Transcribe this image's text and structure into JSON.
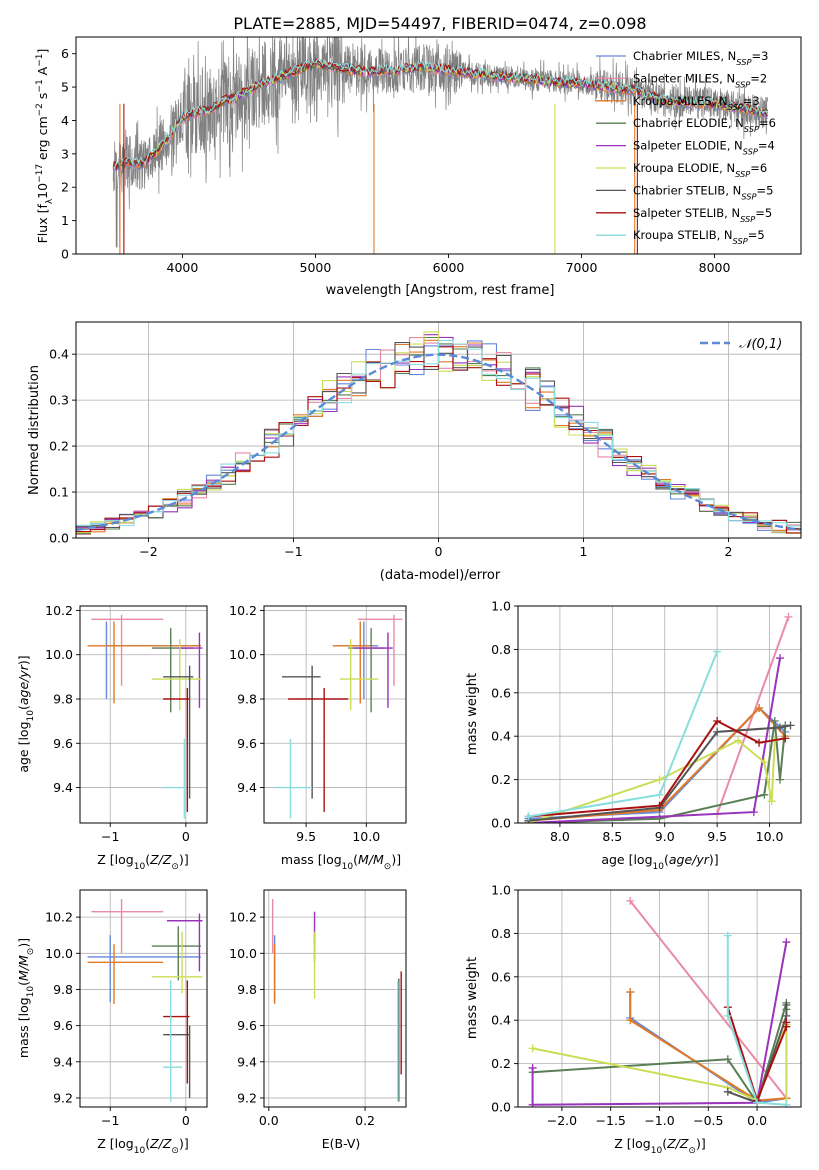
{
  "figure_title": "PLATE=2885, MJD=54497, FIBERID=0474, z=0.098",
  "colors": {
    "c0": "#6688dd",
    "c1": "#e88aa8",
    "c2": "#e07a28",
    "c3": "#5a7e55",
    "c4": "#9933bb",
    "c5": "#ccdd55",
    "c6": "#555555",
    "c7": "#aa1111",
    "c8": "#88dddd",
    "data": "#808080",
    "gauss": "#5b8bd6"
  },
  "chart_data": [
    {
      "id": "spectrum",
      "type": "line",
      "xlabel": "wavelength [Angstrom, rest frame]",
      "ylabel": "Flux [f_λ10^-17 erg cm^-2 s^-1 A^-1]",
      "xlim": [
        3200,
        8650
      ],
      "ylim": [
        0,
        6.5
      ],
      "xticks": [
        4000,
        5000,
        6000,
        7000,
        8000
      ],
      "yticks": [
        0,
        1,
        2,
        3,
        4,
        5,
        6
      ],
      "legend_position": "upper right",
      "legend": [
        "Chabrier MILES, N_SSP=3",
        "Salpeter MILES, N_SSP=2",
        "Kroupa MILES, N_SSP=3",
        "Chabrier ELODIE, N_SSP=6",
        "Salpeter ELODIE, N_SSP=4",
        "Kroupa ELODIE, N_SSP=6",
        "Chabrier STELIB, N_SSP=5",
        "Salpeter STELIB, N_SSP=5",
        "Kroupa STELIB, N_SSP=5"
      ],
      "model_continuum": {
        "wavelength": [
          3480,
          3600,
          3700,
          3800,
          3900,
          4000,
          4100,
          4200,
          4300,
          4400,
          4500,
          4600,
          4700,
          4800,
          4900,
          5000,
          5200,
          5400,
          5600,
          5800,
          6000,
          6200,
          6400,
          6600,
          6800,
          7000,
          7200,
          7400,
          7600,
          7800,
          8000,
          8200,
          8400
        ],
        "flux": [
          2.6,
          2.75,
          2.7,
          3.05,
          3.5,
          4.1,
          4.25,
          4.3,
          4.55,
          4.7,
          4.9,
          5.1,
          5.25,
          5.4,
          5.55,
          5.7,
          5.55,
          5.45,
          5.5,
          5.6,
          5.5,
          5.4,
          5.3,
          5.25,
          5.15,
          5.1,
          5.0,
          4.9,
          4.6,
          4.55,
          4.5,
          4.35,
          4.2
        ]
      }
    },
    {
      "id": "residuals",
      "type": "step",
      "xlabel": "(data-model)/error",
      "ylabel": "Normed distribution",
      "xlim": [
        -2.5,
        2.5
      ],
      "ylim": [
        0,
        0.47
      ],
      "xticks": [
        -2,
        -1,
        0,
        1,
        2
      ],
      "yticks": [
        0.0,
        0.1,
        0.2,
        0.3,
        0.4
      ],
      "legend_position": "upper right",
      "gauss_label": "𝒩(0,1)"
    },
    {
      "id": "age_vs_Z",
      "type": "errorbar",
      "xlabel": "Z [log10(Z/Z☉)]",
      "ylabel": "age [log10(age/yr)]",
      "xlim": [
        -1.4,
        0.28
      ],
      "ylim": [
        9.24,
        10.22
      ],
      "xticks": [
        -1,
        0
      ],
      "yticks": [
        9.4,
        9.6,
        9.8,
        10.0,
        10.2
      ],
      "points": [
        {
          "c": "c0",
          "x": -1.05,
          "xe": [
            -1.05,
            0.2
          ],
          "y": 10.04,
          "ye": [
            9.8,
            10.15
          ]
        },
        {
          "c": "c1",
          "x": -0.85,
          "xe": [
            -1.25,
            -0.3
          ],
          "y": 10.16,
          "ye": [
            9.86,
            10.18
          ]
        },
        {
          "c": "c2",
          "x": -0.95,
          "xe": [
            -1.3,
            0.2
          ],
          "y": 10.04,
          "ye": [
            9.78,
            10.15
          ]
        },
        {
          "c": "c3",
          "x": -0.2,
          "xe": [
            -0.45,
            0.1
          ],
          "y": 10.03,
          "ye": [
            9.74,
            10.12
          ]
        },
        {
          "c": "c4",
          "x": 0.18,
          "xe": [
            -0.1,
            0.22
          ],
          "y": 10.03,
          "ye": [
            9.76,
            10.1
          ]
        },
        {
          "c": "c5",
          "x": -0.08,
          "xe": [
            -0.45,
            0.2
          ],
          "y": 9.89,
          "ye": [
            9.75,
            10.07
          ]
        },
        {
          "c": "c6",
          "x": 0.05,
          "xe": [
            -0.3,
            0.1
          ],
          "y": 9.9,
          "ye": [
            9.35,
            9.95
          ]
        },
        {
          "c": "c7",
          "x": 0.02,
          "xe": [
            -0.3,
            0.05
          ],
          "y": 9.8,
          "ye": [
            9.29,
            9.85
          ]
        },
        {
          "c": "c8",
          "x": -0.02,
          "xe": [
            -0.3,
            0.0
          ],
          "y": 9.4,
          "ye": [
            9.26,
            9.62
          ]
        }
      ]
    },
    {
      "id": "age_vs_mass",
      "type": "errorbar",
      "xlabel": "mass [log10(M/M☉)]",
      "ylabel": "",
      "xlim": [
        9.15,
        10.33
      ],
      "ylim": [
        9.24,
        10.22
      ],
      "xticks": [
        9.5,
        10.0
      ],
      "yticks": [
        9.4,
        9.6,
        9.8,
        10.0,
        10.2
      ],
      "points": [
        {
          "c": "c0",
          "x": 9.98,
          "xe": [
            9.75,
            10.1
          ],
          "y": 10.04,
          "ye": [
            9.8,
            10.15
          ]
        },
        {
          "c": "c1",
          "x": 10.23,
          "xe": [
            9.93,
            10.3
          ],
          "y": 10.16,
          "ye": [
            9.86,
            10.18
          ]
        },
        {
          "c": "c2",
          "x": 9.95,
          "xe": [
            9.72,
            10.05
          ],
          "y": 10.04,
          "ye": [
            9.78,
            10.15
          ]
        },
        {
          "c": "c3",
          "x": 10.04,
          "xe": [
            9.85,
            10.15
          ],
          "y": 10.03,
          "ye": [
            9.74,
            10.12
          ]
        },
        {
          "c": "c4",
          "x": 10.18,
          "xe": [
            9.9,
            10.22
          ],
          "y": 10.03,
          "ye": [
            9.76,
            10.1
          ]
        },
        {
          "c": "c5",
          "x": 9.87,
          "xe": [
            9.78,
            10.1
          ],
          "y": 9.89,
          "ye": [
            9.75,
            10.07
          ]
        },
        {
          "c": "c6",
          "x": 9.55,
          "xe": [
            9.3,
            9.62
          ],
          "y": 9.9,
          "ye": [
            9.35,
            9.95
          ]
        },
        {
          "c": "c7",
          "x": 9.65,
          "xe": [
            9.35,
            9.85
          ],
          "y": 9.8,
          "ye": [
            9.29,
            9.85
          ]
        },
        {
          "c": "c8",
          "x": 9.37,
          "xe": [
            9.25,
            9.55
          ],
          "y": 9.4,
          "ye": [
            9.26,
            9.62
          ]
        }
      ]
    },
    {
      "id": "weight_vs_age",
      "type": "line",
      "xlabel": "age [log10(age/yr)]",
      "ylabel": "mass weight",
      "xlim": [
        7.6,
        10.3
      ],
      "ylim": [
        0,
        1
      ],
      "xticks": [
        8.0,
        8.5,
        9.0,
        9.5,
        10.0
      ],
      "yticks": [
        0.0,
        0.2,
        0.4,
        0.6,
        0.8,
        1.0
      ],
      "series": [
        {
          "c": "c0",
          "x": [
            7.7,
            8.95,
            9.9,
            10.15
          ],
          "y": [
            0.02,
            0.05,
            0.53,
            0.42
          ]
        },
        {
          "c": "c1",
          "x": [
            9.5,
            10.18
          ],
          "y": [
            0.04,
            0.95
          ]
        },
        {
          "c": "c2",
          "x": [
            7.7,
            8.95,
            9.9,
            10.15
          ],
          "y": [
            0.01,
            0.06,
            0.53,
            0.4
          ]
        },
        {
          "c": "c3",
          "x": [
            7.7,
            8.95,
            9.95,
            10.05,
            10.1,
            10.15
          ],
          "y": [
            0.0,
            0.02,
            0.13,
            0.47,
            0.2,
            0.45
          ]
        },
        {
          "c": "c4",
          "x": [
            7.7,
            9.85,
            10.1
          ],
          "y": [
            0.0,
            0.05,
            0.76
          ]
        },
        {
          "c": "c5",
          "x": [
            7.7,
            8.95,
            9.7,
            9.95,
            10.02,
            10.05
          ],
          "y": [
            0.0,
            0.2,
            0.38,
            0.28,
            0.1,
            0.38
          ]
        },
        {
          "c": "c6",
          "x": [
            7.7,
            8.95,
            9.5,
            10.1,
            10.2
          ],
          "y": [
            0.01,
            0.07,
            0.42,
            0.44,
            0.45
          ]
        },
        {
          "c": "c7",
          "x": [
            7.7,
            8.95,
            9.5,
            9.9,
            10.15
          ],
          "y": [
            0.03,
            0.08,
            0.47,
            0.37,
            0.39
          ]
        },
        {
          "c": "c8",
          "x": [
            7.7,
            8.95,
            9.5
          ],
          "y": [
            0.03,
            0.13,
            0.79
          ]
        }
      ]
    },
    {
      "id": "mass_vs_Z",
      "type": "errorbar",
      "xlabel": "Z [log10(Z/Z☉)]",
      "ylabel": "mass [log10(M/M☉)]",
      "xlim": [
        -1.4,
        0.28
      ],
      "ylim": [
        9.15,
        10.35
      ],
      "xticks": [
        -1,
        0
      ],
      "yticks": [
        9.2,
        9.4,
        9.6,
        9.8,
        10.0,
        10.2
      ],
      "points": [
        {
          "c": "c0",
          "x": -1.0,
          "xe": [
            -1.3,
            0.2
          ],
          "y": 9.98,
          "ye": [
            9.73,
            10.1
          ]
        },
        {
          "c": "c1",
          "x": -0.85,
          "xe": [
            -1.25,
            -0.3
          ],
          "y": 10.23,
          "ye": [
            10.0,
            10.3
          ]
        },
        {
          "c": "c2",
          "x": -0.95,
          "xe": [
            -1.3,
            -0.3
          ],
          "y": 9.95,
          "ye": [
            9.72,
            10.05
          ]
        },
        {
          "c": "c3",
          "x": -0.1,
          "xe": [
            -0.45,
            0.2
          ],
          "y": 10.04,
          "ye": [
            9.85,
            10.15
          ]
        },
        {
          "c": "c4",
          "x": 0.18,
          "xe": [
            -0.25,
            0.22
          ],
          "y": 10.18,
          "ye": [
            9.9,
            10.22
          ]
        },
        {
          "c": "c5",
          "x": -0.05,
          "xe": [
            -0.45,
            0.22
          ],
          "y": 9.87,
          "ye": [
            9.78,
            10.12
          ]
        },
        {
          "c": "c6",
          "x": 0.05,
          "xe": [
            -0.3,
            0.05
          ],
          "y": 9.55,
          "ye": [
            9.2,
            9.6
          ]
        },
        {
          "c": "c7",
          "x": 0.02,
          "xe": [
            -0.3,
            0.05
          ],
          "y": 9.65,
          "ye": [
            9.28,
            9.85
          ]
        },
        {
          "c": "c8",
          "x": -0.2,
          "xe": [
            -0.3,
            -0.05
          ],
          "y": 9.37,
          "ye": [
            9.18,
            9.85
          ]
        }
      ]
    },
    {
      "id": "mass_vs_ebv",
      "type": "errorbar",
      "xlabel": "E(B-V)",
      "ylabel": "",
      "xlim": [
        -0.01,
        0.285
      ],
      "ylim": [
        9.15,
        10.35
      ],
      "xticks": [
        0.0,
        0.2
      ],
      "yticks": [
        9.2,
        9.4,
        9.6,
        9.8,
        10.0,
        10.2
      ],
      "points": [
        {
          "c": "c0",
          "x": 0.012,
          "xe": [
            0.012,
            0.012
          ],
          "y": 9.98,
          "ye": [
            9.73,
            10.1
          ]
        },
        {
          "c": "c1",
          "x": 0.008,
          "xe": [
            0.008,
            0.008
          ],
          "y": 10.23,
          "ye": [
            10.0,
            10.3
          ]
        },
        {
          "c": "c2",
          "x": 0.012,
          "xe": [
            0.012,
            0.012
          ],
          "y": 9.95,
          "ye": [
            9.72,
            10.05
          ]
        },
        {
          "c": "c3",
          "x": 0.095,
          "xe": [
            0.095,
            0.095
          ],
          "y": 10.04,
          "ye": [
            9.95,
            10.12
          ]
        },
        {
          "c": "c4",
          "x": 0.095,
          "xe": [
            0.095,
            0.095
          ],
          "y": 10.18,
          "ye": [
            10.05,
            10.23
          ]
        },
        {
          "c": "c5",
          "x": 0.095,
          "xe": [
            0.095,
            0.095
          ],
          "y": 9.87,
          "ye": [
            9.75,
            10.12
          ]
        },
        {
          "c": "c6",
          "x": 0.27,
          "xe": [
            0.27,
            0.27
          ],
          "y": 9.55,
          "ye": [
            9.18,
            9.86
          ]
        },
        {
          "c": "c7",
          "x": 0.275,
          "xe": [
            0.275,
            0.275
          ],
          "y": 9.65,
          "ye": [
            9.33,
            9.9
          ]
        },
        {
          "c": "c8",
          "x": 0.268,
          "xe": [
            0.268,
            0.268
          ],
          "y": 9.37,
          "ye": [
            9.18,
            9.85
          ]
        }
      ]
    },
    {
      "id": "weight_vs_Z",
      "type": "line",
      "xlabel": "Z [log10(Z/Z☉)]",
      "ylabel": "mass weight",
      "xlim": [
        -2.45,
        0.45
      ],
      "ylim": [
        0,
        1
      ],
      "xticks": [
        -2.0,
        -1.5,
        -1.0,
        -0.5,
        0.0
      ],
      "yticks": [
        0.0,
        0.2,
        0.4,
        0.6,
        0.8,
        1.0
      ],
      "series": [
        {
          "c": "c0",
          "x": [
            -1.3,
            -1.3,
            0.0,
            0.3
          ],
          "y": [
            0.53,
            0.41,
            0.02,
            0.04
          ]
        },
        {
          "c": "c1",
          "x": [
            -1.3,
            0.3
          ],
          "y": [
            0.95,
            0.04
          ]
        },
        {
          "c": "c2",
          "x": [
            -1.3,
            -1.3,
            0.0,
            0.3
          ],
          "y": [
            0.53,
            0.4,
            0.03,
            0.04
          ]
        },
        {
          "c": "c3",
          "x": [
            -2.3,
            -0.3,
            0.0,
            0.3,
            0.3
          ],
          "y": [
            0.16,
            0.22,
            0.02,
            0.48,
            0.45
          ]
        },
        {
          "c": "c4",
          "x": [
            -2.3,
            -2.3,
            0.0,
            0.3
          ],
          "y": [
            0.18,
            0.01,
            0.02,
            0.76
          ]
        },
        {
          "c": "c5",
          "x": [
            -2.3,
            -0.3,
            0.0,
            0.3,
            0.3
          ],
          "y": [
            0.27,
            0.09,
            0.03,
            0.38,
            0.01
          ]
        },
        {
          "c": "c6",
          "x": [
            -0.3,
            0.0,
            0.3,
            0.3
          ],
          "y": [
            0.07,
            0.02,
            0.42,
            0.47
          ]
        },
        {
          "c": "c7",
          "x": [
            -0.3,
            0.0,
            0.3,
            0.3
          ],
          "y": [
            0.46,
            0.03,
            0.37,
            0.39
          ]
        },
        {
          "c": "c8",
          "x": [
            -0.3,
            -0.3,
            0.0,
            0.3
          ],
          "y": [
            0.79,
            0.42,
            0.02,
            0.01
          ]
        }
      ]
    }
  ]
}
